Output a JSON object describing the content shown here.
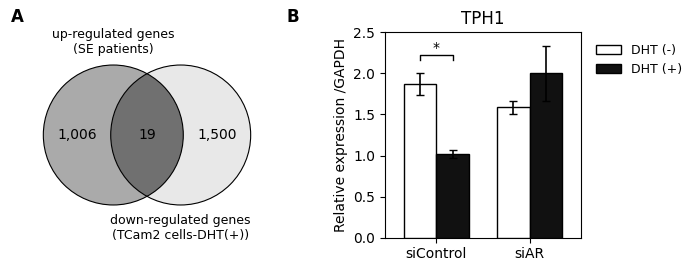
{
  "chart_data": [
    {
      "type": "venn",
      "series": [
        {
          "name": "up-regulated genes\n(SE patients)"
        },
        {
          "name": "down-regulated genes\n(TCam2 cells-DHT(+))"
        }
      ],
      "values": [
        1006,
        19,
        1500
      ],
      "value_labels": [
        "1,006",
        "19",
        "1,500"
      ],
      "colors": [
        "#aaaaaa",
        "#707070",
        "#e8e8e8"
      ],
      "data_labels": true,
      "annotations": [
        {
          "text": "A"
        }
      ]
    },
    {
      "type": "bar",
      "title": "TPH1",
      "ylabel": "Relative expression /GAPDH",
      "categories": [
        "siControl",
        "siAR"
      ],
      "series": [
        {
          "name": "DHT (-)",
          "color": "#ffffff",
          "values": [
            1.87,
            1.59
          ],
          "errors": [
            0.13,
            0.08
          ]
        },
        {
          "name": "DHT (+)",
          "color": "#111111",
          "values": [
            1.02,
            2.0
          ],
          "errors": [
            0.05,
            0.33
          ]
        }
      ],
      "ylim": [
        0,
        2.5
      ],
      "yticks": [
        0.0,
        0.5,
        1.0,
        1.5,
        2.0,
        2.5
      ],
      "legend": "upper left",
      "annotations": [
        {
          "text": "B"
        },
        {
          "text": "*",
          "category": "siControl",
          "y": 2.22
        }
      ]
    }
  ]
}
